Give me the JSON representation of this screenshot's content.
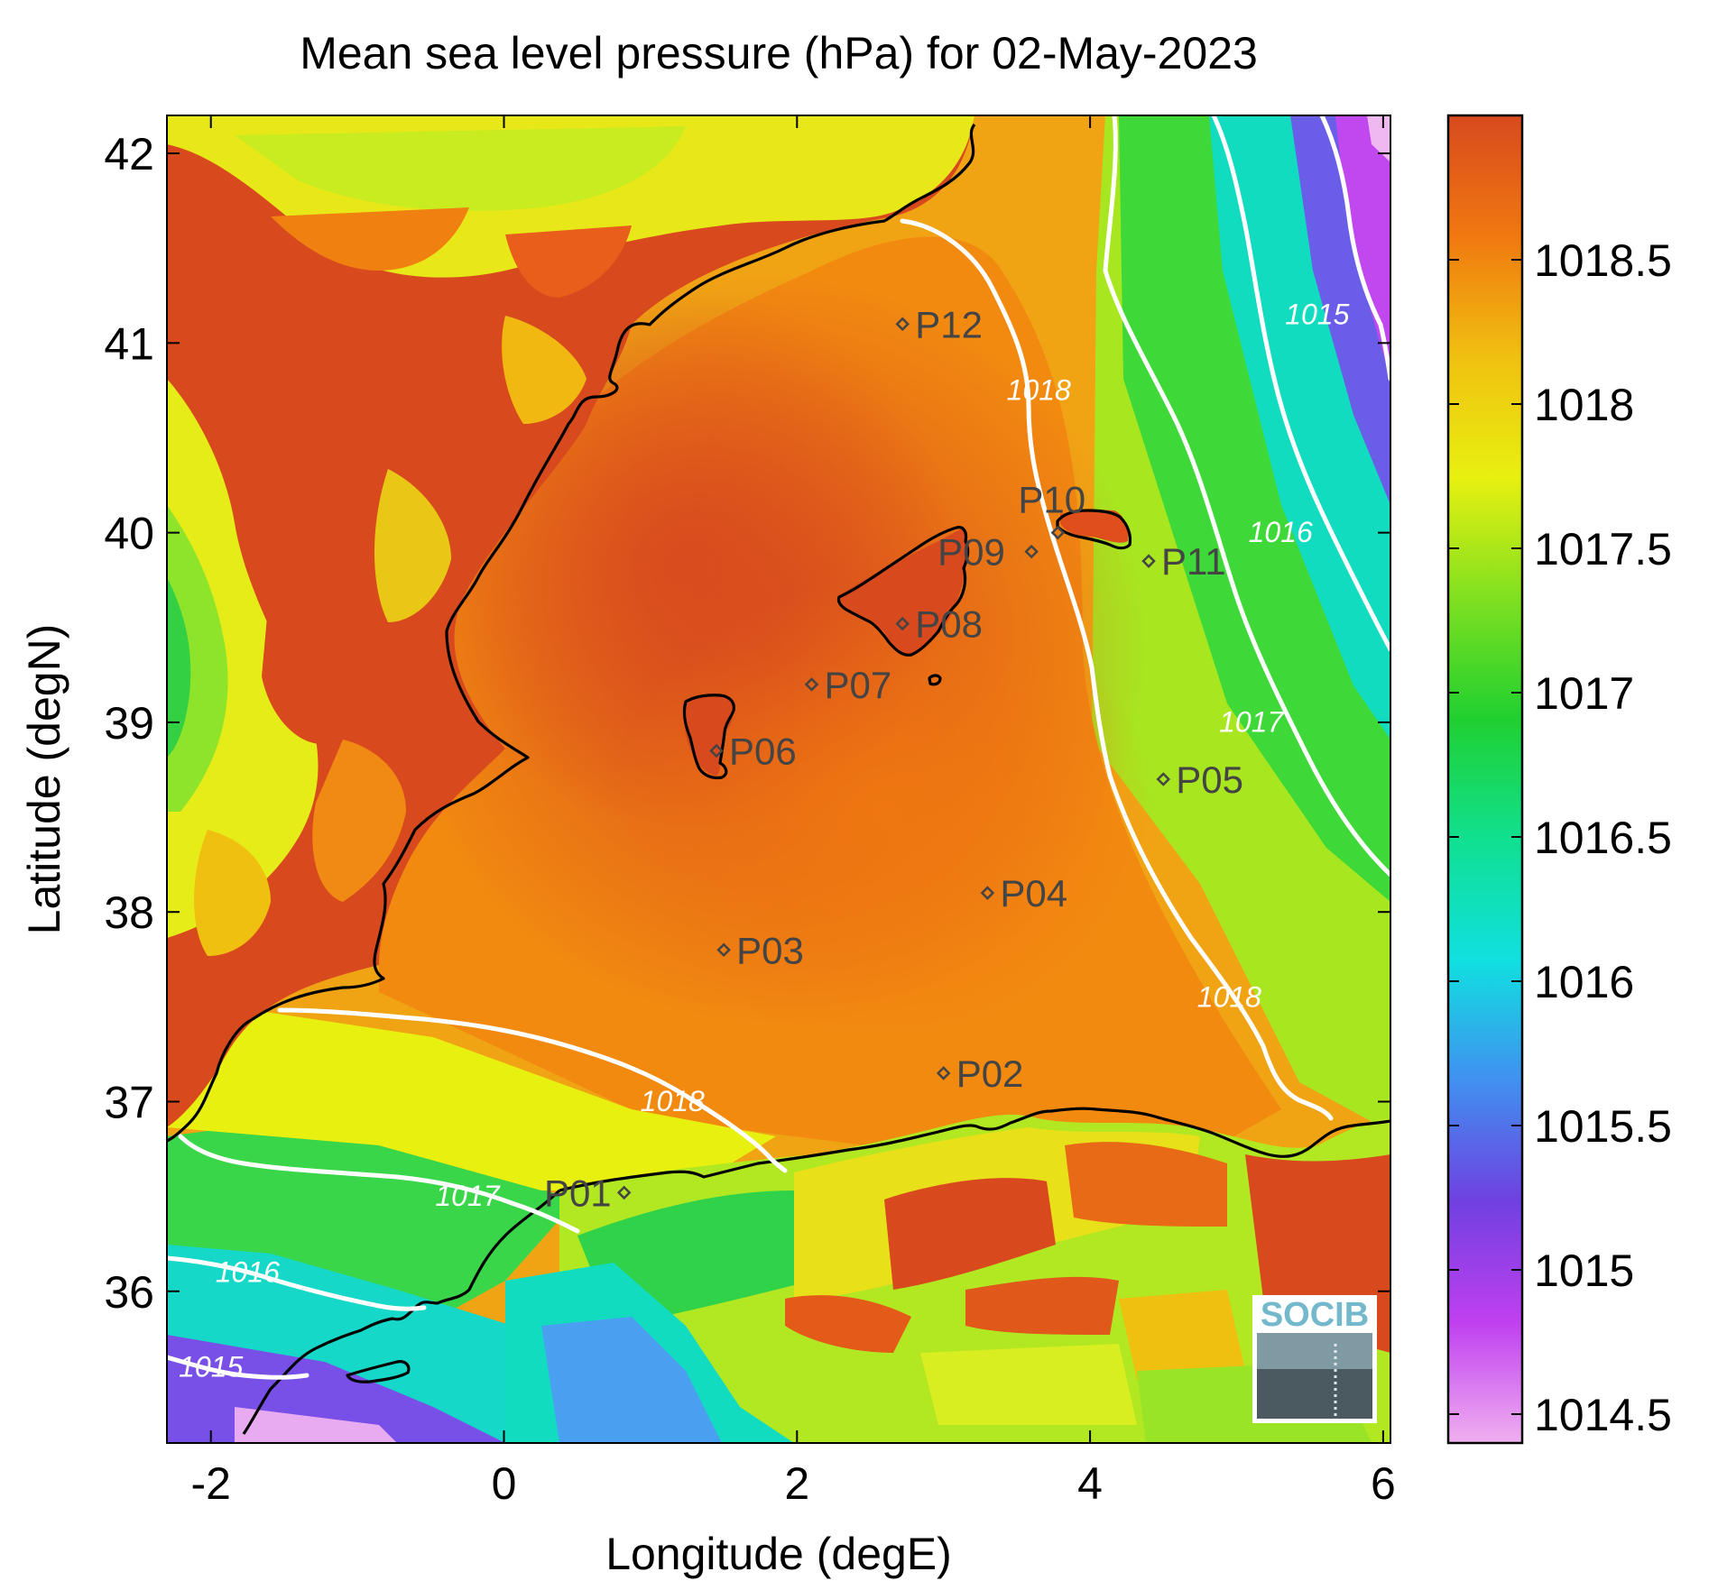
{
  "title": "Mean sea level pressure (hPa) for 02-May-2023",
  "x_axis": {
    "label": "Longitude (degE)",
    "range": [
      -2.3,
      6.05
    ],
    "ticks": [
      {
        "value": -2,
        "label": "-2"
      },
      {
        "value": 0,
        "label": "0"
      },
      {
        "value": 2,
        "label": "2"
      },
      {
        "value": 4,
        "label": "4"
      },
      {
        "value": 6,
        "label": "6"
      }
    ]
  },
  "y_axis": {
    "label": "Latitude (degN)",
    "range": [
      35.2,
      42.2
    ],
    "ticks": [
      {
        "value": 36,
        "label": "36"
      },
      {
        "value": 37,
        "label": "37"
      },
      {
        "value": 38,
        "label": "38"
      },
      {
        "value": 39,
        "label": "39"
      },
      {
        "value": 40,
        "label": "40"
      },
      {
        "value": 41,
        "label": "41"
      },
      {
        "value": 42,
        "label": "42"
      }
    ]
  },
  "colorbar": {
    "range": [
      1014.4,
      1019.0
    ],
    "colors": [
      "#f0b0f0",
      "#c040f0",
      "#7040e0",
      "#4090f0",
      "#10e0e0",
      "#10e090",
      "#20d030",
      "#80e020",
      "#e8f010",
      "#f0c010",
      "#f07810",
      "#d84a1e"
    ],
    "ticks": [
      {
        "value": 1014.5,
        "label": "1014.5"
      },
      {
        "value": 1015,
        "label": "1015"
      },
      {
        "value": 1015.5,
        "label": "1015.5"
      },
      {
        "value": 1016,
        "label": "1016"
      },
      {
        "value": 1016.5,
        "label": "1016.5"
      },
      {
        "value": 1017,
        "label": "1017"
      },
      {
        "value": 1017.5,
        "label": "1017.5"
      },
      {
        "value": 1018,
        "label": "1018"
      },
      {
        "value": 1018.5,
        "label": "1018.5"
      }
    ]
  },
  "contour_labels": [
    {
      "text": "1015",
      "lon": 5.55,
      "lat": 41.1
    },
    {
      "text": "1016",
      "lon": 5.3,
      "lat": 39.95
    },
    {
      "text": "1017",
      "lon": 5.1,
      "lat": 38.95
    },
    {
      "text": "1018",
      "lon": 3.65,
      "lat": 40.7
    },
    {
      "text": "1018",
      "lon": 4.95,
      "lat": 37.5
    },
    {
      "text": "1018",
      "lon": 1.15,
      "lat": 36.95
    },
    {
      "text": "1017",
      "lon": -0.25,
      "lat": 36.45
    },
    {
      "text": "1016",
      "lon": -1.75,
      "lat": 36.05
    },
    {
      "text": "1015",
      "lon": -2.0,
      "lat": 35.55
    }
  ],
  "stations": [
    {
      "name": "P01",
      "lon": 0.82,
      "lat": 36.52
    },
    {
      "name": "P02",
      "lon": 3.0,
      "lat": 37.15
    },
    {
      "name": "P03",
      "lon": 1.5,
      "lat": 37.8
    },
    {
      "name": "P04",
      "lon": 3.3,
      "lat": 38.1
    },
    {
      "name": "P05",
      "lon": 4.5,
      "lat": 38.7
    },
    {
      "name": "P06",
      "lon": 1.45,
      "lat": 38.85
    },
    {
      "name": "P07",
      "lon": 2.1,
      "lat": 39.2
    },
    {
      "name": "P08",
      "lon": 2.72,
      "lat": 39.52
    },
    {
      "name": "P09",
      "lon": 3.6,
      "lat": 39.9
    },
    {
      "name": "P10",
      "lon": 3.78,
      "lat": 40.0
    },
    {
      "name": "P11",
      "lon": 4.4,
      "lat": 39.85
    },
    {
      "name": "P12",
      "lon": 2.72,
      "lat": 41.1
    }
  ],
  "logo": {
    "text": "SOCIB"
  }
}
